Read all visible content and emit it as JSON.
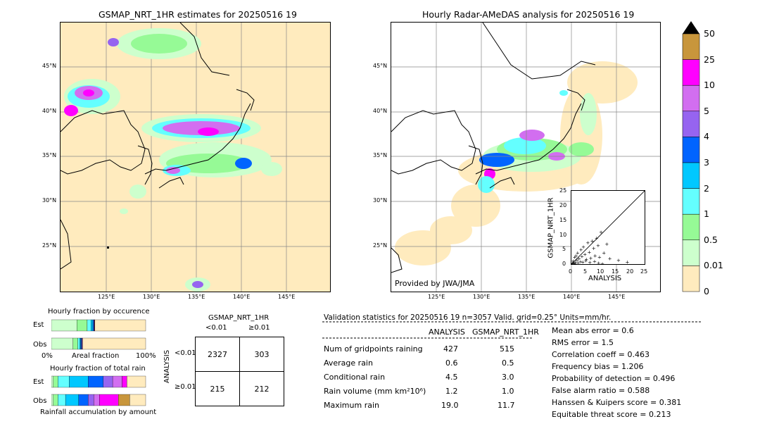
{
  "left_map": {
    "title": "GSMAP_NRT_1HR estimates for 20250516 19",
    "lon_ticks": [
      "125°E",
      "130°E",
      "135°E",
      "140°E",
      "145°E"
    ],
    "lat_ticks": [
      "45°N",
      "40°N",
      "35°N",
      "30°N",
      "25°N"
    ]
  },
  "right_map": {
    "title": "Hourly Radar-AMeDAS analysis for 20250516 19",
    "lon_ticks": [
      "125°E",
      "130°E",
      "135°E",
      "140°E",
      "145°E"
    ],
    "lat_ticks": [
      "45°N",
      "40°N",
      "35°N",
      "30°N",
      "25°N"
    ],
    "credit": "Provided by JWA/JMA"
  },
  "scatter": {
    "xlabel": "ANALYSIS",
    "ylabel": "GSMAP_NRT_1HR",
    "ticks": [
      "0",
      "5",
      "10",
      "15",
      "20",
      "25"
    ]
  },
  "colorbar": {
    "labels": [
      "50",
      "25",
      "10",
      "5",
      "4",
      "3",
      "2",
      "1",
      "0.5",
      "0.01",
      "0"
    ],
    "colors": [
      "#c8963c",
      "#ff00ff",
      "#d26ef0",
      "#9664f0",
      "#0064ff",
      "#00c8ff",
      "#64ffff",
      "#96fa96",
      "#cdffcd",
      "#ffebbe"
    ]
  },
  "occurrence": {
    "title": "Hourly fraction by occurence",
    "rows": [
      "Est",
      "Obs"
    ],
    "axis_left": "0%",
    "axis_mid": "Areal fraction",
    "axis_right": "100%"
  },
  "total_rain": {
    "title": "Hourly fraction of total rain",
    "rows": [
      "Est",
      "Obs"
    ],
    "footer": "Rainfall accumulation by amount"
  },
  "contingency": {
    "title": "GSMAP_NRT_1HR",
    "col_labels": [
      "<0.01",
      "≥0.01"
    ],
    "row_axis": "ANALYSIS",
    "row_labels": [
      "<0.01",
      "≥0.01"
    ],
    "cells": [
      [
        "2327",
        "303"
      ],
      [
        "215",
        "212"
      ]
    ]
  },
  "validation": {
    "header": "Validation statistics for 20250516 19  n=3057 Valid. grid=0.25° Units=mm/hr.",
    "col_analysis": "ANALYSIS",
    "col_gsmap": "GSMAP_NRT_1HR",
    "rows": [
      {
        "label": "Num of gridpoints raining",
        "a": "427",
        "g": "515"
      },
      {
        "label": "Average rain",
        "a": "0.6",
        "g": "0.5"
      },
      {
        "label": "Conditional rain",
        "a": "4.5",
        "g": "3.0"
      },
      {
        "label": "Rain volume (mm km²10⁶)",
        "a": "1.2",
        "g": "1.0"
      },
      {
        "label": "Maximum rain",
        "a": "19.0",
        "g": "11.7"
      }
    ],
    "scores": [
      "Mean abs error =    0.6",
      "RMS error =    1.5",
      "Correlation coeff =  0.463",
      "Frequency bias =  1.206",
      "Probability of detection =  0.496",
      "False alarm ratio =  0.588",
      "Hanssen & Kuipers score =  0.381",
      "Equitable threat score =  0.213"
    ]
  },
  "chart_data": [
    {
      "type": "heatmap",
      "title": "GSMAP_NRT_1HR estimates for 20250516 19",
      "xlabel": "",
      "ylabel": "",
      "x_ticks": [
        "125°E",
        "130°E",
        "135°E",
        "140°E",
        "145°E"
      ],
      "y_ticks": [
        "45°N",
        "40°N",
        "35°N",
        "30°N",
        "25°N"
      ],
      "units": "mm/hr",
      "levels": [
        0,
        0.01,
        0.5,
        1,
        2,
        3,
        4,
        5,
        10,
        25,
        50
      ]
    },
    {
      "type": "heatmap",
      "title": "Hourly Radar-AMeDAS analysis for 20250516 19",
      "xlabel": "",
      "ylabel": "",
      "x_ticks": [
        "125°E",
        "130°E",
        "135°E",
        "140°E",
        "145°E"
      ],
      "y_ticks": [
        "45°N",
        "40°N",
        "35°N",
        "30°N",
        "25°N"
      ],
      "units": "mm/hr",
      "levels": [
        0,
        0.01,
        0.5,
        1,
        2,
        3,
        4,
        5,
        10,
        25,
        50
      ]
    },
    {
      "type": "scatter",
      "xlabel": "ANALYSIS",
      "ylabel": "GSMAP_NRT_1HR",
      "xlim": [
        0,
        25
      ],
      "ylim": [
        0,
        25
      ],
      "x": [
        0.2,
        0.5,
        0.8,
        1.0,
        1.2,
        1.5,
        1.8,
        2.0,
        2.5,
        3.0,
        3.2,
        3.5,
        4.0,
        4.5,
        5.0,
        5.5,
        6.0,
        6.5,
        7.0,
        7.5,
        8.0,
        8.5,
        9.0,
        9.5,
        10.0,
        11.0,
        12.0,
        13.0,
        16.0,
        19.0,
        0.3,
        0.6,
        1.1,
        2.2,
        3.8,
        4.8,
        6.2,
        7.8,
        9.2,
        10.5
      ],
      "y": [
        0.5,
        1.2,
        0.3,
        2.5,
        0.8,
        3.0,
        1.5,
        4.0,
        2.0,
        1.0,
        5.0,
        2.8,
        6.0,
        3.5,
        1.8,
        7.5,
        4.2,
        2.2,
        8.0,
        5.5,
        3.0,
        9.0,
        6.5,
        2.5,
        11.0,
        4.0,
        7.0,
        2.0,
        1.5,
        0.8,
        0.1,
        0.2,
        0.4,
        0.6,
        0.9,
        1.3,
        0.7,
        1.1,
        0.5,
        0.3
      ]
    },
    {
      "type": "bar",
      "title": "Hourly fraction by occurence",
      "categories": [
        "Est",
        "Obs"
      ],
      "series": [
        {
          "values": [
            0.27,
            0.23
          ]
        },
        {
          "values": [
            0.11,
            0.05
          ]
        },
        {
          "values": [
            0.04,
            0.02
          ]
        },
        {
          "values": [
            0.02,
            0.01
          ]
        },
        {
          "values": [
            0.01,
            0.01
          ]
        },
        {
          "values": [
            0.005,
            0.005
          ]
        },
        {
          "values": [
            0.003,
            0.003
          ]
        },
        {
          "values": [
            0.002,
            0.002
          ]
        },
        {
          "values": [
            0.0,
            0.0
          ]
        }
      ]
    },
    {
      "type": "bar",
      "title": "Hourly fraction of total rain",
      "categories": [
        "Est",
        "Obs"
      ],
      "series": [
        {
          "values": [
            0.02,
            0.02
          ]
        },
        {
          "values": [
            0.05,
            0.05
          ]
        },
        {
          "values": [
            0.12,
            0.08
          ]
        },
        {
          "values": [
            0.2,
            0.14
          ]
        },
        {
          "values": [
            0.16,
            0.1
          ]
        },
        {
          "values": [
            0.1,
            0.06
          ]
        },
        {
          "values": [
            0.1,
            0.06
          ]
        },
        {
          "values": [
            0.05,
            0.2
          ]
        },
        {
          "values": [
            0.0,
            0.12
          ]
        }
      ]
    }
  ]
}
